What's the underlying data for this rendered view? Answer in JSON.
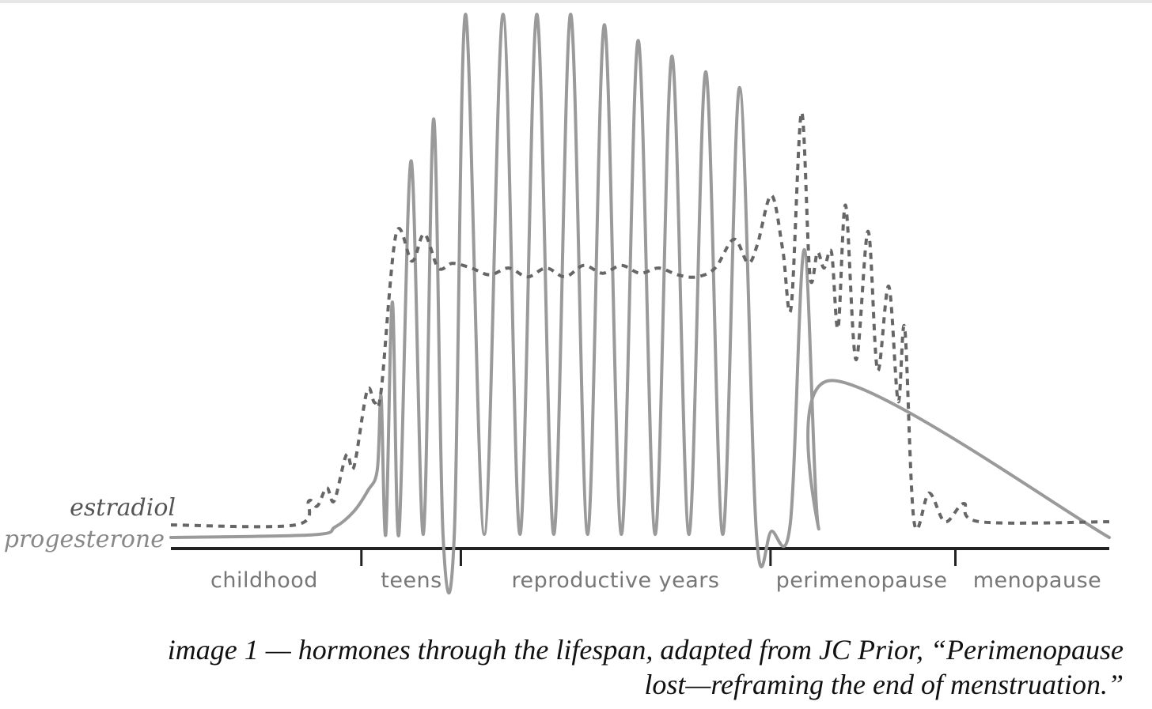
{
  "chart_data": {
    "type": "line",
    "title": "",
    "xlabel": "",
    "ylabel": "",
    "grid": false,
    "legend": "left, at series start",
    "x_unit": "relative lifespan (0–100)",
    "y_unit": "relative hormone level (0–100)",
    "ylim": [
      0,
      100
    ],
    "xlim": [
      0,
      100
    ],
    "phases": [
      {
        "name": "childhood",
        "start": 0,
        "end": 20.3
      },
      {
        "name": "teens",
        "start": 20.3,
        "end": 30.9
      },
      {
        "name": "reproductive years",
        "start": 30.9,
        "end": 63.9
      },
      {
        "name": "perimenopause",
        "start": 63.9,
        "end": 83.6
      },
      {
        "name": "menopause",
        "start": 83.6,
        "end": 100
      }
    ],
    "series": [
      {
        "name": "estradiol",
        "style": "dashed",
        "color": "#666666",
        "points": [
          [
            0,
            2.4
          ],
          [
            13.3,
            2.4
          ],
          [
            14.7,
            7.0
          ],
          [
            15.6,
            6.0
          ],
          [
            16.6,
            9.5
          ],
          [
            17.4,
            7.0
          ],
          [
            18.7,
            15.8
          ],
          [
            19.5,
            13.5
          ],
          [
            20.9,
            28.0
          ],
          [
            21.7,
            25.8
          ],
          [
            22.4,
            28.0
          ],
          [
            24.0,
            58.0
          ],
          [
            25.7,
            52.8
          ],
          [
            27.0,
            58.0
          ],
          [
            28.5,
            51.5
          ],
          [
            30.0,
            52.4
          ],
          [
            32.0,
            51.5
          ],
          [
            34.0,
            50.2
          ],
          [
            36.0,
            51.5
          ],
          [
            38.0,
            49.8
          ],
          [
            40.0,
            51.5
          ],
          [
            42.0,
            49.8
          ],
          [
            44.0,
            52.0
          ],
          [
            46.0,
            50.5
          ],
          [
            48.0,
            52.0
          ],
          [
            50.0,
            50.5
          ],
          [
            52.0,
            51.5
          ],
          [
            54.0,
            50.2
          ],
          [
            56.0,
            49.8
          ],
          [
            58.0,
            51.5
          ],
          [
            60.0,
            57.0
          ],
          [
            61.5,
            52.5
          ],
          [
            62.5,
            56.0
          ],
          [
            64.0,
            65.4
          ],
          [
            65.2,
            55.0
          ],
          [
            66.1,
            44.0
          ],
          [
            67.2,
            81.2
          ],
          [
            68.1,
            50.0
          ],
          [
            68.9,
            54.5
          ],
          [
            69.6,
            51.5
          ],
          [
            70.4,
            54.5
          ],
          [
            71.1,
            40.0
          ],
          [
            71.9,
            63.5
          ],
          [
            73.0,
            34.0
          ],
          [
            74.3,
            58.5
          ],
          [
            75.3,
            32.0
          ],
          [
            76.5,
            48.0
          ],
          [
            77.5,
            26.0
          ],
          [
            78.2,
            40.0
          ],
          [
            79.2,
            3.0
          ],
          [
            80.8,
            8.5
          ],
          [
            82.5,
            3.0
          ],
          [
            84.5,
            6.5
          ],
          [
            86.2,
            3.0
          ],
          [
            100,
            3.0
          ]
        ]
      },
      {
        "name": "progesterone",
        "style": "solid",
        "color": "#9a9a9a",
        "points": [
          [
            0,
            0
          ],
          [
            15,
            0.5
          ],
          [
            17.5,
            2.0
          ],
          [
            19.5,
            5.0
          ],
          [
            21.0,
            9.0
          ],
          [
            22.0,
            13.0
          ],
          [
            22.4,
            27.0
          ],
          [
            22.9,
            0.6
          ],
          [
            23.6,
            45.0
          ],
          [
            24.3,
            0.6
          ],
          [
            25.6,
            72.0
          ],
          [
            26.9,
            0.6
          ],
          [
            28.0,
            80.0
          ],
          [
            29.0,
            0.6
          ],
          [
            31.4,
            100.0
          ],
          [
            35.4,
            100.0
          ],
          [
            39.0,
            100.0
          ],
          [
            42.6,
            100.0
          ],
          [
            46.2,
            98.0
          ],
          [
            49.8,
            95.0
          ],
          [
            53.4,
            92.0
          ],
          [
            64.0,
            1.2
          ],
          [
            66.0,
            2.6
          ],
          [
            67.5,
            55.0
          ],
          [
            69.0,
            2.0
          ],
          [
            70.5,
            30.0
          ],
          [
            100,
            0
          ]
        ]
      }
    ]
  },
  "caption": {
    "line1": "image 1 — hormones through the lifespan, adapted from JC Prior, “Perimenopause",
    "line2": "lost—reframing the end of menstruation.”"
  }
}
